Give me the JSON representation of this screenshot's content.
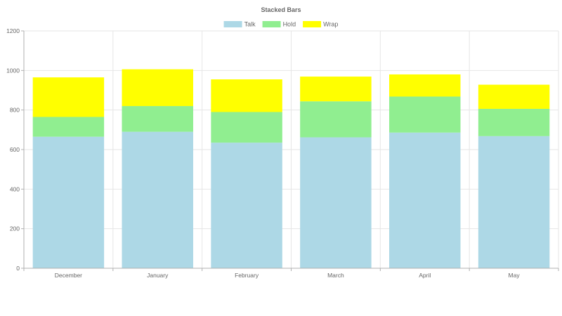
{
  "chart_data": {
    "type": "bar",
    "stacked": true,
    "title": "Stacked Bars",
    "categories": [
      "December",
      "January",
      "February",
      "March",
      "April",
      "May"
    ],
    "series": [
      {
        "name": "Talk",
        "color": "#add8e6",
        "values": [
          665,
          690,
          635,
          662,
          686,
          668
        ]
      },
      {
        "name": "Hold",
        "color": "#90ee90",
        "values": [
          100,
          130,
          155,
          182,
          182,
          138
        ]
      },
      {
        "name": "Wrap",
        "color": "#ffff00",
        "values": [
          200,
          186,
          165,
          125,
          112,
          122
        ]
      }
    ],
    "ylim": [
      0,
      1200
    ],
    "yticks": [
      0,
      200,
      400,
      600,
      800,
      1000,
      1200
    ],
    "grid": true,
    "legend_position": "top-center"
  }
}
